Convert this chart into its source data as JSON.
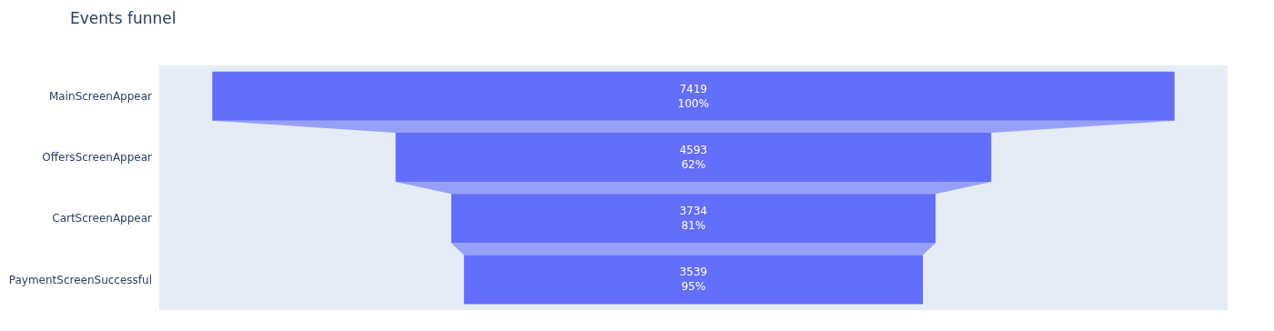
{
  "chart_data": {
    "type": "other",
    "title": "Events funnel",
    "categories": [
      "MainScreenAppear",
      "OffersScreenAppear",
      "CartScreenAppear",
      "PaymentScreenSuccessful"
    ],
    "values": [
      7419,
      4593,
      3734,
      3539
    ],
    "data_labels": true,
    "annotations": [
      {
        "text": "100%",
        "y": "MainScreenAppear"
      },
      {
        "text": "62%",
        "y": "OffersScreenAppear"
      },
      {
        "text": "81%",
        "y": "CartScreenAppear"
      },
      {
        "text": "95%",
        "y": "PaymentScreenSuccessful"
      }
    ],
    "color": "#636efa"
  }
}
